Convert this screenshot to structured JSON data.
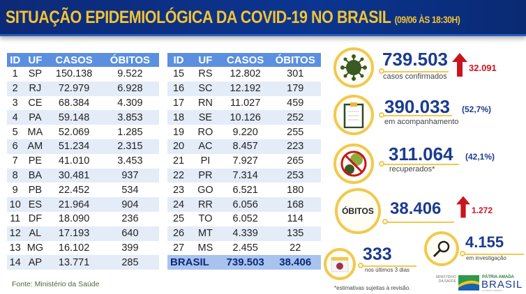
{
  "header": {
    "title": "SITUAÇÃO EPIDEMIOLÓGICA DA COVID-19 NO BRASIL",
    "timestamp": "(09/06 ÀS 18:30H)"
  },
  "table": {
    "columns": [
      "ID",
      "UF",
      "CASOS",
      "ÓBITOS"
    ],
    "left": [
      [
        "1",
        "SP",
        "150.138",
        "9.522"
      ],
      [
        "2",
        "RJ",
        "72.979",
        "6.928"
      ],
      [
        "3",
        "CE",
        "68.384",
        "4.309"
      ],
      [
        "4",
        "PA",
        "59.148",
        "3.853"
      ],
      [
        "5",
        "MA",
        "52.069",
        "1.285"
      ],
      [
        "6",
        "AM",
        "51.234",
        "2.315"
      ],
      [
        "7",
        "PE",
        "41.010",
        "3.453"
      ],
      [
        "8",
        "BA",
        "30.481",
        "937"
      ],
      [
        "9",
        "PB",
        "22.452",
        "534"
      ],
      [
        "10",
        "ES",
        "21.964",
        "904"
      ],
      [
        "11",
        "DF",
        "18.090",
        "236"
      ],
      [
        "12",
        "AL",
        "17.193",
        "640"
      ],
      [
        "13",
        "MG",
        "16.102",
        "399"
      ],
      [
        "14",
        "AP",
        "13.771",
        "285"
      ]
    ],
    "right": [
      [
        "15",
        "RS",
        "12.802",
        "301"
      ],
      [
        "16",
        "SC",
        "12.192",
        "179"
      ],
      [
        "17",
        "RN",
        "11.027",
        "459"
      ],
      [
        "18",
        "SE",
        "10.126",
        "252"
      ],
      [
        "19",
        "RO",
        "9.220",
        "255"
      ],
      [
        "20",
        "AC",
        "8.457",
        "223"
      ],
      [
        "21",
        "PI",
        "7.927",
        "265"
      ],
      [
        "22",
        "PR",
        "7.314",
        "253"
      ],
      [
        "23",
        "GO",
        "6.521",
        "180"
      ],
      [
        "24",
        "RR",
        "6.056",
        "168"
      ],
      [
        "25",
        "TO",
        "6.052",
        "114"
      ],
      [
        "26",
        "MT",
        "4.339",
        "135"
      ],
      [
        "27",
        "MS",
        "2.455",
        "22"
      ]
    ],
    "total": {
      "label": "BRASIL",
      "casos": "739.503",
      "obitos": "38.406"
    }
  },
  "source": "Fonte: Ministério da Saúde",
  "stats": {
    "confirmed": {
      "value": "739.503",
      "label": "casos confirmados",
      "delta": "32.091",
      "icon": "virus-icon"
    },
    "monitoring": {
      "value": "390.033",
      "pct": "(52,7%)",
      "label": "em acompanhamento",
      "icon": "clipboard-icon"
    },
    "recovered": {
      "value": "311.064",
      "pct": "(42,1%)",
      "label": "recuperados*",
      "icon": "no-virus-icon"
    },
    "deaths": {
      "badge": "ÓBITOS",
      "value": "38.406",
      "delta": "1.272"
    },
    "last3": {
      "value": "333",
      "label": "nos últimos 3 dias",
      "cal": "3",
      "icon": "calendar-icon"
    },
    "investigation": {
      "value": "4.155",
      "label": "em investigação",
      "icon": "magnifier-icon"
    }
  },
  "footnote": "*estimativas sujeitas à revisão.",
  "logos": {
    "ministry": "MINISTÉRIO DA SAÚDE",
    "brand_top": "PÁTRIA AMADA",
    "brand_main": "BRASIL",
    "brand_sub": "GOVERNO FEDERAL"
  },
  "colors": {
    "navy": "#0d2a78",
    "yellow": "#f4c430",
    "red": "#c8161d",
    "header_blue": "#5b8fe0"
  }
}
